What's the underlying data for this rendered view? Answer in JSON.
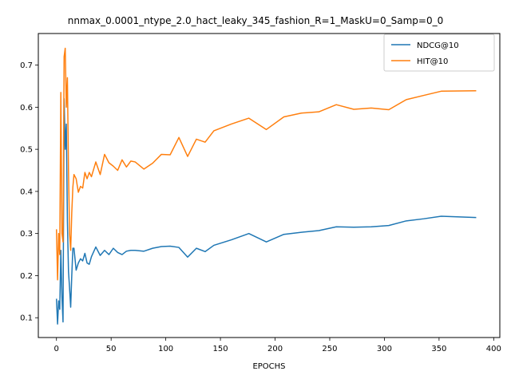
{
  "chart_data": {
    "type": "line",
    "title": "nnmax_0.0001_ntype_2.0_hact_leaky_345_fashion_R=1_MaskU=0_Samp=0_0",
    "xlabel": "EPOCHS",
    "ylabel": "",
    "xlim": [
      -16.6,
      405.6
    ],
    "ylim": [
      0.053,
      0.775
    ],
    "xticks": [
      0,
      50,
      100,
      150,
      200,
      250,
      300,
      350,
      400
    ],
    "yticks": [
      0.1,
      0.2,
      0.3,
      0.4,
      0.5,
      0.6,
      0.7
    ],
    "xtick_labels": [
      "0",
      "50",
      "100",
      "150",
      "200",
      "250",
      "300",
      "350",
      "400"
    ],
    "ytick_labels": [
      "0.1",
      "0.2",
      "0.3",
      "0.4",
      "0.5",
      "0.6",
      "0.7"
    ],
    "grid": false,
    "legend_position": "top-right",
    "colors": {
      "NDCG@10": "#1f77b4",
      "HIT@10": "#ff7f0e"
    },
    "series": [
      {
        "name": "NDCG@10",
        "x": [
          0,
          1,
          2,
          3,
          4,
          5,
          6,
          7,
          8,
          9,
          10,
          11,
          12,
          13,
          14,
          15,
          16,
          18,
          20,
          22,
          24,
          26,
          28,
          30,
          32,
          36,
          40,
          44,
          48,
          52,
          56,
          60,
          64,
          68,
          72,
          80,
          88,
          96,
          104,
          112,
          120,
          128,
          136,
          144,
          160,
          176,
          192,
          208,
          224,
          240,
          256,
          272,
          288,
          304,
          320,
          336,
          352,
          384
        ],
        "y": [
          0.145,
          0.085,
          0.14,
          0.12,
          0.26,
          0.15,
          0.09,
          0.62,
          0.5,
          0.56,
          0.33,
          0.21,
          0.17,
          0.125,
          0.2,
          0.265,
          0.265,
          0.213,
          0.23,
          0.24,
          0.235,
          0.253,
          0.23,
          0.227,
          0.245,
          0.268,
          0.248,
          0.26,
          0.25,
          0.265,
          0.255,
          0.25,
          0.258,
          0.26,
          0.26,
          0.258,
          0.265,
          0.269,
          0.27,
          0.267,
          0.244,
          0.265,
          0.257,
          0.272,
          0.285,
          0.3,
          0.28,
          0.298,
          0.303,
          0.307,
          0.316,
          0.315,
          0.316,
          0.319,
          0.33,
          0.335,
          0.341,
          0.338
        ]
      },
      {
        "name": "HIT@10",
        "x": [
          0,
          1,
          2,
          3,
          4,
          5,
          6,
          7,
          8,
          9,
          10,
          11,
          12,
          13,
          14,
          15,
          16,
          18,
          20,
          22,
          24,
          26,
          28,
          30,
          32,
          36,
          40,
          44,
          48,
          52,
          56,
          60,
          64,
          68,
          72,
          80,
          88,
          96,
          104,
          112,
          120,
          128,
          136,
          144,
          160,
          176,
          192,
          208,
          224,
          240,
          256,
          272,
          288,
          304,
          320,
          336,
          352,
          384
        ],
        "y": [
          0.31,
          0.19,
          0.3,
          0.25,
          0.635,
          0.3,
          0.28,
          0.72,
          0.74,
          0.6,
          0.67,
          0.45,
          0.3,
          0.26,
          0.35,
          0.41,
          0.44,
          0.43,
          0.398,
          0.412,
          0.408,
          0.445,
          0.43,
          0.445,
          0.435,
          0.47,
          0.44,
          0.488,
          0.468,
          0.46,
          0.45,
          0.475,
          0.458,
          0.472,
          0.47,
          0.453,
          0.467,
          0.488,
          0.487,
          0.528,
          0.483,
          0.524,
          0.517,
          0.544,
          0.56,
          0.574,
          0.547,
          0.577,
          0.586,
          0.589,
          0.606,
          0.595,
          0.598,
          0.594,
          0.618,
          0.628,
          0.638,
          0.639
        ]
      }
    ]
  }
}
